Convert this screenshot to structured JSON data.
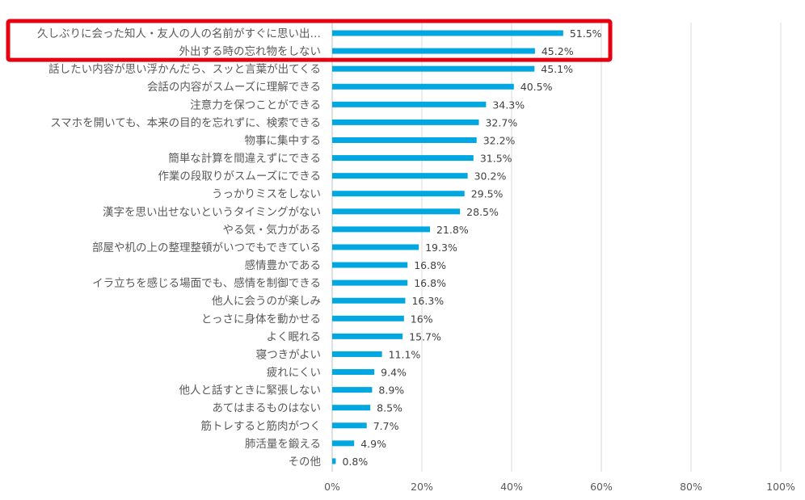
{
  "chart_data": {
    "type": "bar",
    "orientation": "horizontal",
    "categories": [
      "久しぶりに会った知人・友人の人の名前がすぐに思い出…",
      "外出する時の忘れ物をしない",
      "話したい内容が思い浮かんだら、スッと言葉が出てくる",
      "会話の内容がスムーズに理解できる",
      "注意力を保つことができる",
      "スマホを開いても、本来の目的を忘れずに、検索できる",
      "物事に集中する",
      "簡単な計算を間違えずにできる",
      "作業の段取りがスムーズにできる",
      "うっかりミスをしない",
      "漢字を思い出せないというタイミングがない",
      "やる気・気力がある",
      "部屋や机の上の整理整頓がいつでもできている",
      "感情豊かである",
      "イラ立ちを感じる場面でも、感情を制御できる",
      "他人に会うのが楽しみ",
      "とっさに身体を動かせる",
      "よく眠れる",
      "寝つきがよい",
      "疲れにくい",
      "他人と話すときに緊張しない",
      "あてはまるものはない",
      "筋トレすると筋肉がつく",
      "肺活量を鍛える",
      "その他"
    ],
    "values": [
      51.5,
      45.2,
      45.1,
      40.5,
      34.3,
      32.7,
      32.2,
      31.5,
      30.2,
      29.5,
      28.5,
      21.8,
      19.3,
      16.8,
      16.8,
      16.3,
      16,
      15.7,
      11.1,
      9.4,
      8.9,
      8.5,
      7.7,
      4.9,
      0.8
    ],
    "value_labels": [
      "51.5%",
      "45.2%",
      "45.1%",
      "40.5%",
      "34.3%",
      "32.7%",
      "32.2%",
      "31.5%",
      "30.2%",
      "29.5%",
      "28.5%",
      "21.8%",
      "19.3%",
      "16.8%",
      "16.8%",
      "16.3%",
      "16%",
      "15.7%",
      "11.1%",
      "9.4%",
      "8.9%",
      "8.5%",
      "7.7%",
      "4.9%",
      "0.8%"
    ],
    "xlim": [
      0,
      100
    ],
    "x_ticks": [
      0,
      20,
      40,
      60,
      80,
      100
    ],
    "x_tick_labels": [
      "0%",
      "20%",
      "40%",
      "60%",
      "80%",
      "100%"
    ],
    "grid": "vertical",
    "legend": "none",
    "title": "",
    "xlabel": "",
    "ylabel": "",
    "highlight_categories": [
      0,
      1
    ],
    "colors": {
      "bar": "#00a7e1",
      "grid": "#d9d9d9",
      "axis": "#bfbfbf",
      "highlight": "#e50012"
    }
  }
}
